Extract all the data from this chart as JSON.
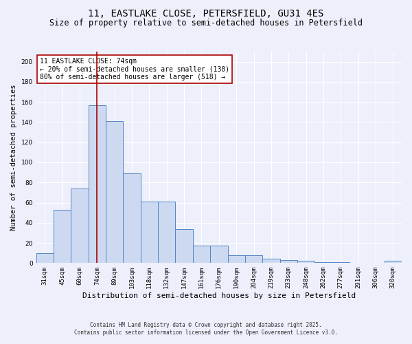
{
  "title": "11, EASTLAKE CLOSE, PETERSFIELD, GU31 4ES",
  "subtitle": "Size of property relative to semi-detached houses in Petersfield",
  "xlabel": "Distribution of semi-detached houses by size in Petersfield",
  "ylabel": "Number of semi-detached properties",
  "categories": [
    "31sqm",
    "45sqm",
    "60sqm",
    "74sqm",
    "89sqm",
    "103sqm",
    "118sqm",
    "132sqm",
    "147sqm",
    "161sqm",
    "176sqm",
    "190sqm",
    "204sqm",
    "219sqm",
    "233sqm",
    "248sqm",
    "262sqm",
    "277sqm",
    "291sqm",
    "306sqm",
    "320sqm"
  ],
  "values": [
    10,
    53,
    74,
    157,
    141,
    89,
    61,
    61,
    34,
    17,
    17,
    8,
    8,
    4,
    3,
    2,
    1,
    1,
    0,
    0,
    2
  ],
  "bar_color": "#ccd9f0",
  "bar_edge_color": "#5585c8",
  "vline_x": 3,
  "vline_color": "#aa0000",
  "annotation_text": "11 EASTLAKE CLOSE: 74sqm\n← 20% of semi-detached houses are smaller (130)\n80% of semi-detached houses are larger (518) →",
  "annotation_box_color": "#ffffff",
  "annotation_box_edge": "#aa0000",
  "ylim": [
    0,
    210
  ],
  "yticks": [
    0,
    20,
    40,
    60,
    80,
    100,
    120,
    140,
    160,
    180,
    200
  ],
  "footer": "Contains HM Land Registry data © Crown copyright and database right 2025.\nContains public sector information licensed under the Open Government Licence v3.0.",
  "bg_color": "#edf0fa",
  "grid_color": "#ffffff",
  "title_fontsize": 10,
  "subtitle_fontsize": 8.5,
  "xlabel_fontsize": 8,
  "ylabel_fontsize": 7.5,
  "tick_fontsize": 6.5,
  "annot_fontsize": 7,
  "footer_fontsize": 5.5
}
